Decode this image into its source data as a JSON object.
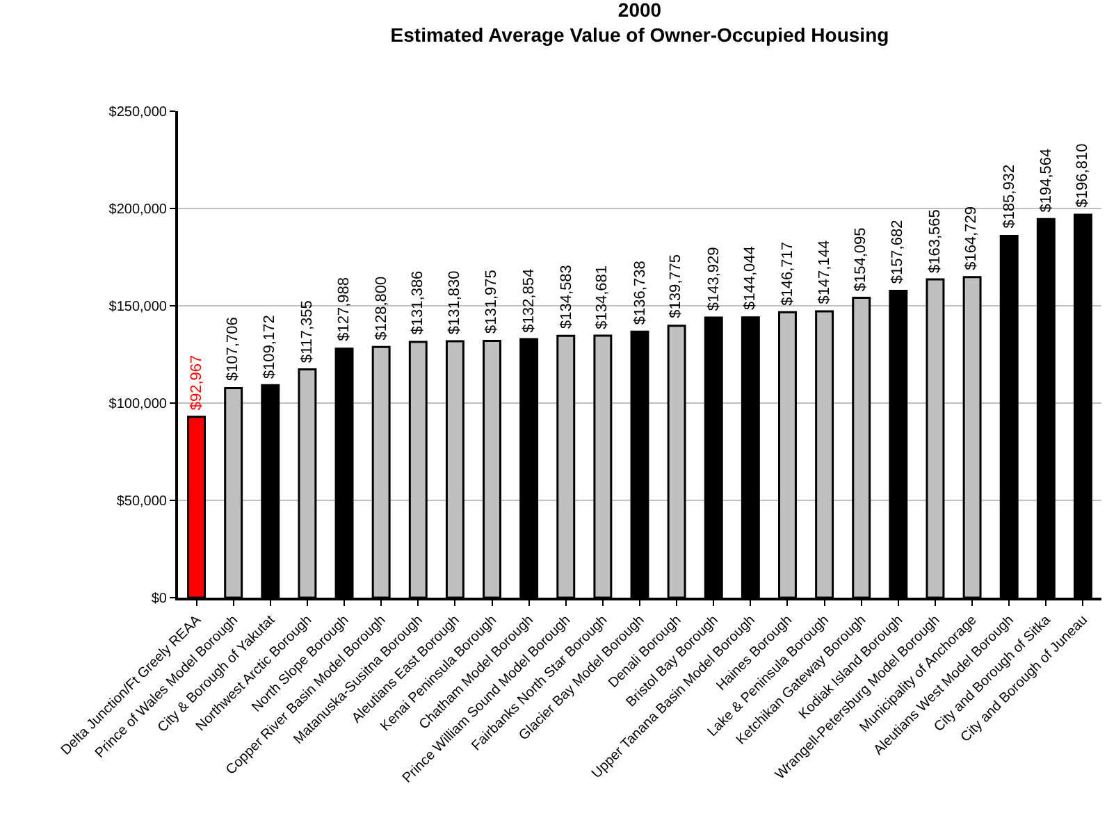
{
  "chart_data": {
    "type": "bar",
    "title": "2000",
    "subtitle": "Estimated Average Value of Owner-Occupied Housing",
    "categories": [
      "Delta Junction/Ft Greely REAA",
      "Prince of Wales Model Borough",
      "City & Borough of Yakutat",
      "Northwest Arctic Borough",
      "North Slope Borough",
      "Copper River Basin Model Borough",
      "Matanuska-Susitna Borough",
      "Aleutians East Borough",
      "Kenai Peninsula Borough",
      "Chatham Model Borough",
      "Prince William Sound Model Borough",
      "Fairbanks North Star Borough",
      "Glacier Bay Model Borough",
      "Denali Borough",
      "Bristol Bay Borough",
      "Upper Tanana Basin Model Borough",
      "Haines Borough",
      "Lake & Peninsula Borough",
      "Ketchikan Gateway Borough",
      "Kodiak Island Borough",
      "Wrangell-Petersburg Model Borough",
      "Municipality of Anchorage",
      "Aleutians West Model Borough",
      "City and Borough of Sitka",
      "City and Borough of Juneau"
    ],
    "values": [
      92967,
      107706,
      109172,
      117355,
      127988,
      128800,
      131386,
      131830,
      131975,
      132854,
      134583,
      134681,
      136738,
      139775,
      143929,
      144044,
      146717,
      147144,
      154095,
      157682,
      163565,
      164729,
      185932,
      194564,
      196810
    ],
    "colors": [
      "#ff0000",
      "#c0c0c0",
      "#000000",
      "#c0c0c0",
      "#000000",
      "#c0c0c0",
      "#c0c0c0",
      "#c0c0c0",
      "#c0c0c0",
      "#000000",
      "#c0c0c0",
      "#c0c0c0",
      "#000000",
      "#c0c0c0",
      "#000000",
      "#000000",
      "#c0c0c0",
      "#c0c0c0",
      "#c0c0c0",
      "#000000",
      "#c0c0c0",
      "#c0c0c0",
      "#000000",
      "#000000",
      "#000000"
    ],
    "value_labels": [
      "$92,967",
      "$107,706",
      "$109,172",
      "$117,355",
      "$127,988",
      "$128,800",
      "$131,386",
      "$131,830",
      "$131,975",
      "$132,854",
      "$134,583",
      "$134,681",
      "$136,738",
      "$139,775",
      "$143,929",
      "$144,044",
      "$146,717",
      "$147,144",
      "$154,095",
      "$157,682",
      "$163,565",
      "$164,729",
      "$185,932",
      "$194,564",
      "$196,810"
    ],
    "ylim": [
      0,
      250000
    ],
    "yticks": [
      {
        "value": 0,
        "label": "$0"
      },
      {
        "value": 50000,
        "label": "$50,000"
      },
      {
        "value": 100000,
        "label": "$100,000"
      },
      {
        "value": 150000,
        "label": "$150,000"
      },
      {
        "value": 200000,
        "label": "$200,000"
      },
      {
        "value": 250000,
        "label": "$250,000"
      }
    ],
    "grid": "y"
  }
}
